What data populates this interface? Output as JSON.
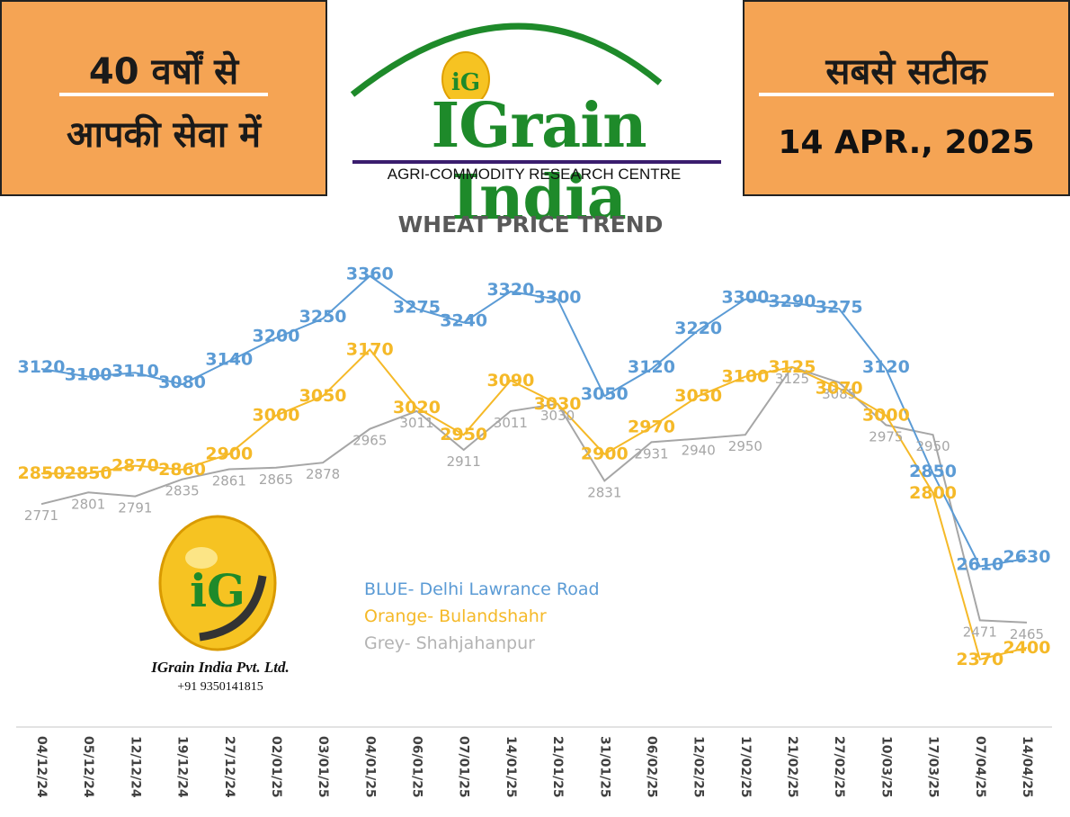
{
  "header": {
    "left_line1": "40 वर्षों से",
    "left_line2": "आपकी सेवा में",
    "brand": "IGrain India",
    "tagline": "AGRI-COMMODITY RESEARCH CENTRE",
    "logo_text": "iG",
    "right_line1": "सबसे सटीक",
    "date": "14 APR., 2025"
  },
  "company": {
    "name": "IGrain India Pvt. Ltd.",
    "phone": "+91 9350141815"
  },
  "colors": {
    "blue": "#5b9bd5",
    "orange": "#f5b928",
    "grey": "#a6a6a6",
    "header_orange": "#f5a454",
    "brand_green": "#1e8a2a"
  },
  "legend": [
    {
      "label": "BLUE- Delhi Lawrance Road",
      "color": "#5b9bd5"
    },
    {
      "label": "Orange- Bulandshahr",
      "color": "#f5b928"
    },
    {
      "label": "Grey- Shahjahanpur",
      "color": "#b3b3b3"
    }
  ],
  "chart_data": {
    "type": "line",
    "title": "WHEAT PRICE TREND",
    "xlabel": "",
    "ylabel": "",
    "ylim": [
      2200,
      3450
    ],
    "grid": false,
    "categories": [
      "04/12/24",
      "05/12/24",
      "12/12/24",
      "19/12/24",
      "27/12/24",
      "02/01/25",
      "03/01/25",
      "04/01/25",
      "06/01/25",
      "07/01/25",
      "14/01/25",
      "21/01/25",
      "31/01/25",
      "06/02/25",
      "12/02/25",
      "17/02/25",
      "21/02/25",
      "27/02/25",
      "10/03/25",
      "17/03/25",
      "07/04/25",
      "14/04/25"
    ],
    "series": [
      {
        "key": "blue",
        "values": [
          3120,
          3100,
          3110,
          3080,
          3140,
          3200,
          3250,
          3360,
          3275,
          3240,
          3320,
          3300,
          3050,
          3120,
          3220,
          3300,
          3290,
          3275,
          3120,
          2850,
          2610,
          2630
        ]
      },
      {
        "key": "orange",
        "values": [
          2850,
          2850,
          2870,
          2860,
          2900,
          3000,
          3050,
          3170,
          3020,
          2950,
          3090,
          3030,
          2900,
          2970,
          3050,
          3100,
          3125,
          3070,
          3000,
          2800,
          2370,
          2400
        ]
      },
      {
        "key": "grey",
        "values": [
          2771,
          2801,
          2791,
          2835,
          2861,
          2865,
          2878,
          2965,
          3011,
          2911,
          3011,
          3030,
          2831,
          2931,
          2940,
          2950,
          3125,
          3085,
          2975,
          2950,
          2471,
          2465
        ]
      }
    ]
  }
}
